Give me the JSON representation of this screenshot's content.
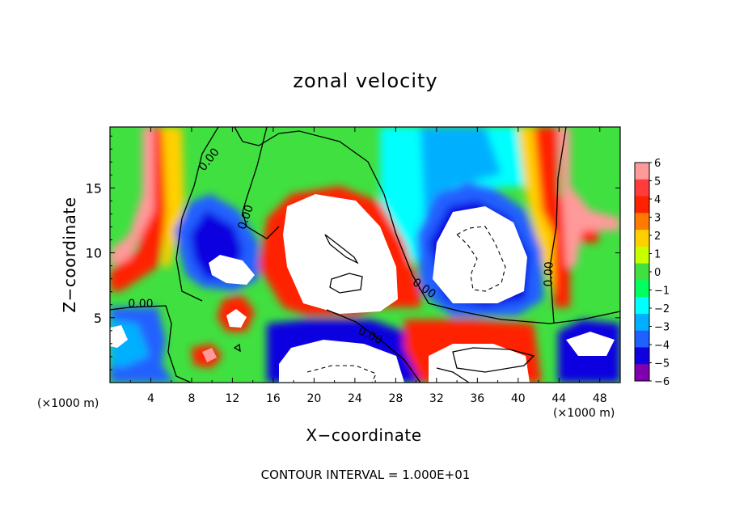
{
  "chart_data": {
    "type": "heatmap",
    "title": "zonal velocity",
    "xlabel": "X−coordinate",
    "ylabel": "Z−coordinate",
    "x_unit_left": "(×1000 m)",
    "x_unit_right": "(×1000 m)",
    "x_ticks": [
      "4",
      "8",
      "12",
      "16",
      "20",
      "24",
      "28",
      "32",
      "36",
      "40",
      "44",
      "48"
    ],
    "y_ticks": [
      "5",
      "10",
      "15"
    ],
    "xlim": [
      0,
      50
    ],
    "ylim": [
      0,
      19.7
    ],
    "colorbar": {
      "ticks": [
        "6",
        "5",
        "4",
        "3",
        "2",
        "1",
        "0",
        "−1",
        "−2",
        "−3",
        "−4",
        "−5",
        "−6"
      ],
      "range": [
        -6,
        6
      ],
      "colors": [
        "#ff9a9a",
        "#ff3b3b",
        "#ff2200",
        "#ff7a00",
        "#ffd000",
        "#c8ff00",
        "#40e040",
        "#00ff60",
        "#00ffff",
        "#00b0ff",
        "#2060ff",
        "#1000e0",
        "#8000b0"
      ]
    },
    "contour_labels": [
      "0.00",
      "0.00",
      "0.00",
      "0.00",
      "0.00",
      "0.00"
    ],
    "contour_interval_text": "CONTOUR INTERVAL = 1.000E+01"
  }
}
